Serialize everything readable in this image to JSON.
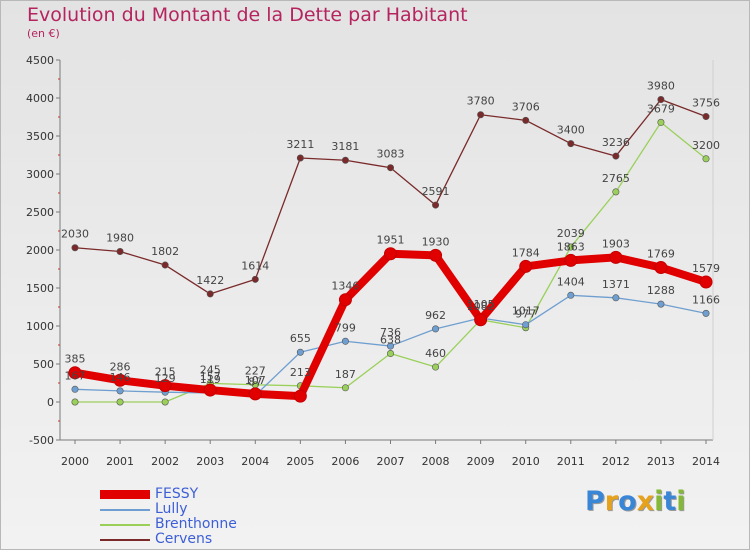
{
  "title": "Evolution du Montant de la Dette par Habitant",
  "subtitle": "(en €)",
  "logo": {
    "text": "Proxiti",
    "letters": [
      {
        "ch": "P",
        "color": "#3a86d6"
      },
      {
        "ch": "r",
        "color": "#e7a21b"
      },
      {
        "ch": "o",
        "color": "#3a86d6"
      },
      {
        "ch": "x",
        "color": "#e7a21b"
      },
      {
        "ch": "i",
        "color": "#84b935"
      },
      {
        "ch": "t",
        "color": "#3a86d6"
      },
      {
        "ch": "i",
        "color": "#84b935"
      }
    ]
  },
  "chart_data": {
    "type": "line",
    "title": "Evolution du Montant de la Dette par Habitant",
    "subtitle": "(en €)",
    "x": [
      "2000",
      "2001",
      "2002",
      "2003",
      "2004",
      "2005",
      "2006",
      "2007",
      "2008",
      "2009",
      "2010",
      "2011",
      "2012",
      "2013",
      "2014"
    ],
    "ylim": [
      -500,
      4500
    ],
    "yticks": [
      -500,
      0,
      500,
      1000,
      1500,
      2000,
      2500,
      3000,
      3500,
      4000,
      4500
    ],
    "grid": false,
    "legend_position": "bottom-left",
    "series": [
      {
        "name": "FESSY",
        "color": "#e00000",
        "values": [
          385,
          286,
          215,
          157,
          107,
          77,
          1346,
          1951,
          1930,
          1082,
          1784,
          1863,
          1903,
          1769,
          1579
        ],
        "labels": [
          "385",
          "286",
          "215",
          "157",
          "107",
          "",
          "1346",
          "1951",
          "1930",
          "1082",
          "1784",
          "1863",
          "1903",
          "1769",
          "1579"
        ]
      },
      {
        "name": "Lully",
        "color": "#6f9fd0",
        "values": [
          167,
          146,
          129,
          119,
          87,
          655,
          799,
          736,
          962,
          1105,
          1017,
          1404,
          1371,
          1288,
          1166
        ],
        "labels": [
          "167",
          "146",
          "129",
          "119",
          "87",
          "655",
          "799",
          "736",
          "962",
          "1105",
          "1017",
          "1404",
          "1371",
          "1288",
          "1166"
        ]
      },
      {
        "name": "Brenthonne",
        "color": "#9ad05a",
        "values": [
          0,
          0,
          0,
          245,
          227,
          213,
          187,
          638,
          460,
          1082,
          977,
          2039,
          2765,
          3679,
          3200
        ],
        "labels": [
          "",
          "",
          "",
          "245",
          "227",
          "213",
          "187",
          "638",
          "460",
          "",
          "977",
          "2039",
          "2765",
          "3679",
          "3200"
        ]
      },
      {
        "name": "Cervens",
        "color": "#7a2a2a",
        "values": [
          2030,
          1980,
          1802,
          1422,
          1614,
          3211,
          3181,
          3083,
          2591,
          3780,
          3706,
          3400,
          3236,
          3980,
          3756
        ],
        "labels": [
          "2030",
          "1980",
          "1802",
          "1422",
          "1614",
          "3211",
          "3181",
          "3083",
          "2591",
          "3780",
          "3706",
          "3400",
          "3236",
          "3980",
          "3756"
        ]
      }
    ]
  }
}
